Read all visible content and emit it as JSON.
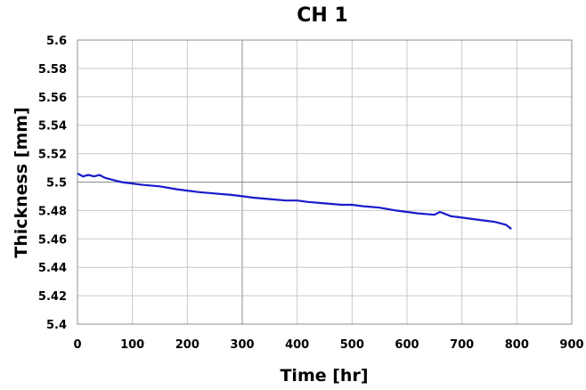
{
  "chart_data": {
    "type": "line",
    "title": "CH 1",
    "xlabel": "Time [hr]",
    "ylabel": "Thickness [mm]",
    "xlim": [
      0,
      900
    ],
    "ylim": [
      5.4,
      5.6
    ],
    "x_ticks": [
      "0",
      "100",
      "200",
      "300",
      "400",
      "500",
      "600",
      "700",
      "800",
      "900"
    ],
    "y_ticks": [
      "5.4",
      "5.42",
      "5.44",
      "5.46",
      "5.48",
      "5.5",
      "5.52",
      "5.54",
      "5.56",
      "5.58",
      "5.6"
    ],
    "grid": true,
    "series": [
      {
        "color": "#1a1acc",
        "x": [
          0,
          10,
          20,
          30,
          40,
          50,
          60,
          80,
          100,
          120,
          150,
          180,
          200,
          220,
          250,
          280,
          300,
          320,
          350,
          380,
          400,
          420,
          450,
          480,
          500,
          520,
          550,
          580,
          600,
          620,
          650,
          660,
          680,
          700,
          720,
          740,
          760,
          780,
          790
        ],
        "y": [
          5.506,
          5.504,
          5.505,
          5.504,
          5.505,
          5.503,
          5.502,
          5.5,
          5.499,
          5.498,
          5.497,
          5.495,
          5.494,
          5.493,
          5.492,
          5.491,
          5.49,
          5.489,
          5.488,
          5.487,
          5.487,
          5.486,
          5.485,
          5.484,
          5.484,
          5.483,
          5.482,
          5.48,
          5.479,
          5.478,
          5.477,
          5.479,
          5.476,
          5.475,
          5.474,
          5.473,
          5.472,
          5.47,
          5.467
        ]
      }
    ]
  }
}
